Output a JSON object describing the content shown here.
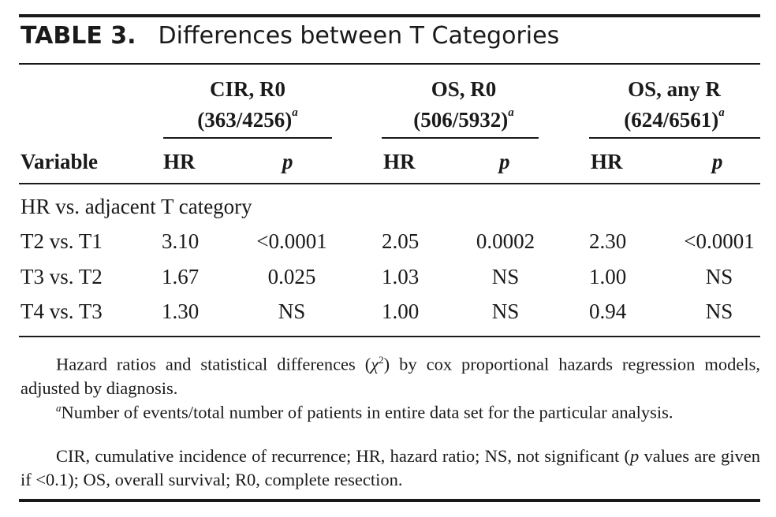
{
  "title": {
    "number": "TABLE 3.",
    "text": "Differences between T Categories"
  },
  "groups": [
    {
      "line1": "CIR, R0",
      "line2": "(363/4256)",
      "sup": "a"
    },
    {
      "line1": "OS, R0",
      "line2": "(506/5932)",
      "sup": "a"
    },
    {
      "line1": "OS, any R",
      "line2": "(624/6561)",
      "sup": "a"
    }
  ],
  "headers": {
    "variable": "Variable",
    "hr": "HR",
    "p": "p"
  },
  "section_label": "HR vs. adjacent T category",
  "rows": [
    {
      "variable": "T2 vs. T1",
      "cir_hr": "3.10",
      "cir_p": "<0.0001",
      "os_hr": "2.05",
      "os_p": "0.0002",
      "osany_hr": "2.30",
      "osany_p": "<0.0001"
    },
    {
      "variable": "T3 vs. T2",
      "cir_hr": "1.67",
      "cir_p": "0.025",
      "os_hr": "1.03",
      "os_p": "NS",
      "osany_hr": "1.00",
      "osany_p": "NS"
    },
    {
      "variable": "T4 vs. T3",
      "cir_hr": "1.30",
      "cir_p": "NS",
      "os_hr": "1.00",
      "os_p": "NS",
      "osany_hr": "0.94",
      "osany_p": "NS"
    }
  ],
  "footnotes": {
    "note1_pre": "Hazard ratios and statistical differences (",
    "note1_chi": "χ",
    "note1_chi_sup": "2",
    "note1_post": ") by cox proportional hazards regression models, adjusted by diagnosis.",
    "note2_marker": "a",
    "note2_text": "Number of events/total number of patients in entire data set for the particular analysis.",
    "note3_pre": "CIR, cumulative incidence of recurrence; HR, hazard ratio; NS, not significant (",
    "note3_p": "p",
    "note3_post": " values are given if <0.1); OS, overall survival; R0, complete resection."
  }
}
